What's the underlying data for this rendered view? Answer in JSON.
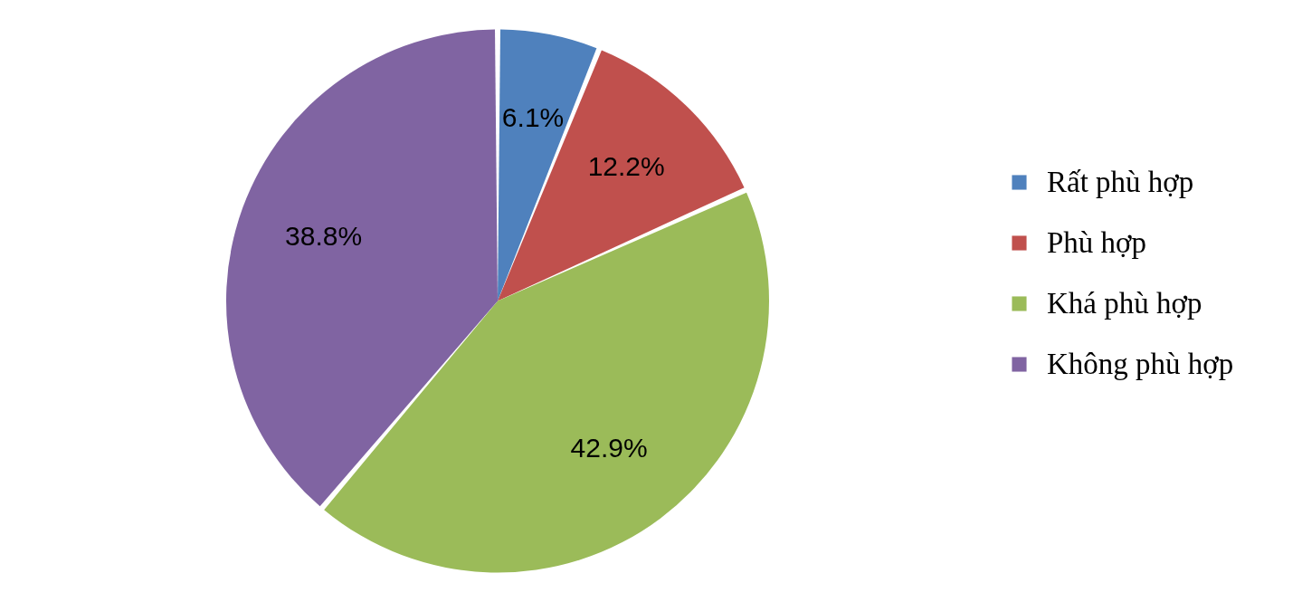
{
  "chart_data": {
    "type": "pie",
    "categories": [
      "Rất phù hợp",
      "Phù hợp",
      "Khá phù hợp",
      "Không phù hợp"
    ],
    "values": [
      6.1,
      12.2,
      42.9,
      38.8
    ],
    "colors": [
      "#4f81bd",
      "#c0504d",
      "#9bbb59",
      "#8064a2"
    ],
    "value_labels": [
      "6.1%",
      "12.2%",
      "42.9%",
      "38.8%"
    ],
    "legend": "right"
  }
}
